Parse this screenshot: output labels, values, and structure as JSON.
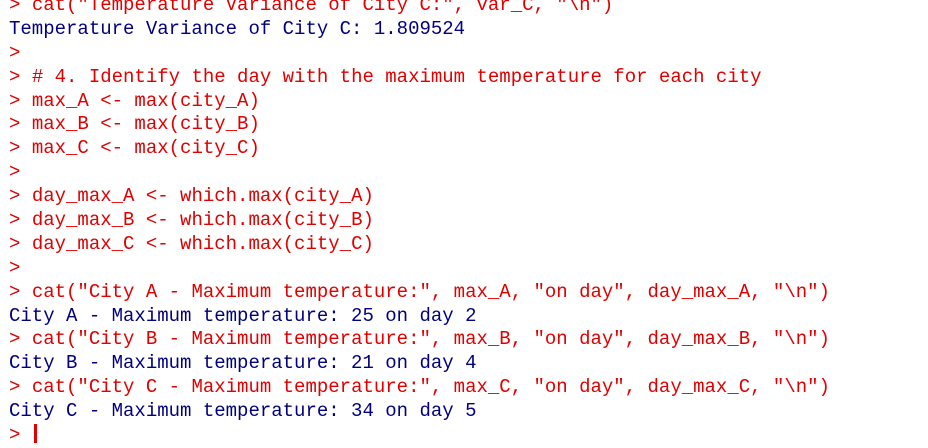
{
  "console": {
    "lines": [
      {
        "prompt": ">",
        "code": "cat(\"Temperature Variance of City C:\", var_C, \"\\n\")"
      },
      {
        "output": "Temperature Variance of City C: 1.809524"
      },
      {
        "prompt": ">"
      },
      {
        "prompt": ">",
        "code": "# 4. Identify the day with the maximum temperature for each city"
      },
      {
        "prompt": ">",
        "code": "max_A <- max(city_A)"
      },
      {
        "prompt": ">",
        "code": "max_B <- max(city_B)"
      },
      {
        "prompt": ">",
        "code": "max_C <- max(city_C)"
      },
      {
        "prompt": ">"
      },
      {
        "prompt": ">",
        "code": "day_max_A <- which.max(city_A)"
      },
      {
        "prompt": ">",
        "code": "day_max_B <- which.max(city_B)"
      },
      {
        "prompt": ">",
        "code": "day_max_C <- which.max(city_C)"
      },
      {
        "prompt": ">"
      },
      {
        "prompt": ">",
        "code": "cat(\"City A - Maximum temperature:\", max_A, \"on day\", day_max_A, \"\\n\")"
      },
      {
        "output": "City A - Maximum temperature: 25 on day 2"
      },
      {
        "prompt": ">",
        "code": "cat(\"City B - Maximum temperature:\", max_B, \"on day\", day_max_B, \"\\n\")"
      },
      {
        "output": "City B - Maximum temperature: 21 on day 4"
      },
      {
        "prompt": ">",
        "code": "cat(\"City C - Maximum temperature:\", max_C, \"on day\", day_max_C, \"\\n\")"
      },
      {
        "output": "City C - Maximum temperature: 34 on day 5"
      },
      {
        "prompt": ">",
        "cursor": true
      }
    ]
  }
}
